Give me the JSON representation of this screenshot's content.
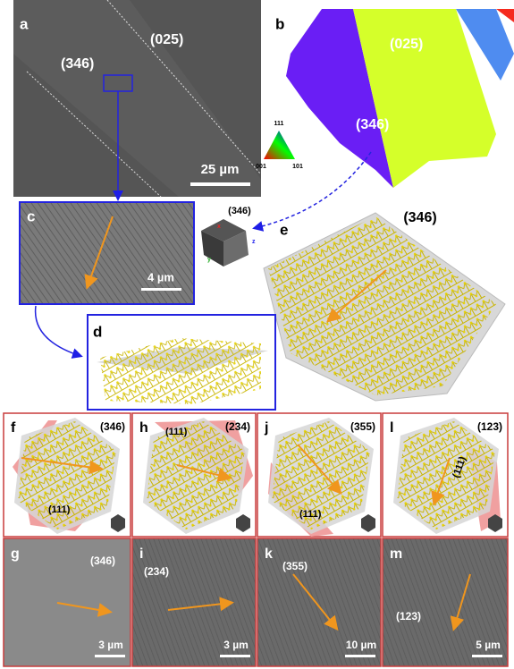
{
  "panels": {
    "a": {
      "label": "a",
      "planes": [
        "(025)",
        "(346)"
      ],
      "scale_bar": "25 µm"
    },
    "b": {
      "label": "b",
      "planes": [
        "(025)",
        "(346)"
      ],
      "legend": {
        "top": "111",
        "left": "001",
        "right": "101"
      }
    },
    "c": {
      "label": "c",
      "scale_bar": "4 µm"
    },
    "cube": {
      "plane": "(346)",
      "axes": [
        "x",
        "y",
        "z"
      ]
    },
    "d": {
      "label": "d"
    },
    "e": {
      "label": "e",
      "plane": "(346)"
    }
  },
  "models": [
    {
      "label": "f",
      "plane": "(346)",
      "twin": "(111)"
    },
    {
      "label": "h",
      "plane": "(234)",
      "twin": "(111)"
    },
    {
      "label": "j",
      "plane": "(355)",
      "twin": "(111)"
    },
    {
      "label": "l",
      "plane": "(123)",
      "twin": "(111)"
    }
  ],
  "images": [
    {
      "label": "g",
      "plane": "(346)",
      "scale_bar": "3 µm"
    },
    {
      "label": "i",
      "plane": "(234)",
      "scale_bar": "3 µm"
    },
    {
      "label": "k",
      "plane": "(355)",
      "scale_bar": "10 µm"
    },
    {
      "label": "m",
      "plane": "(123)",
      "scale_bar": "5 µm"
    }
  ]
}
